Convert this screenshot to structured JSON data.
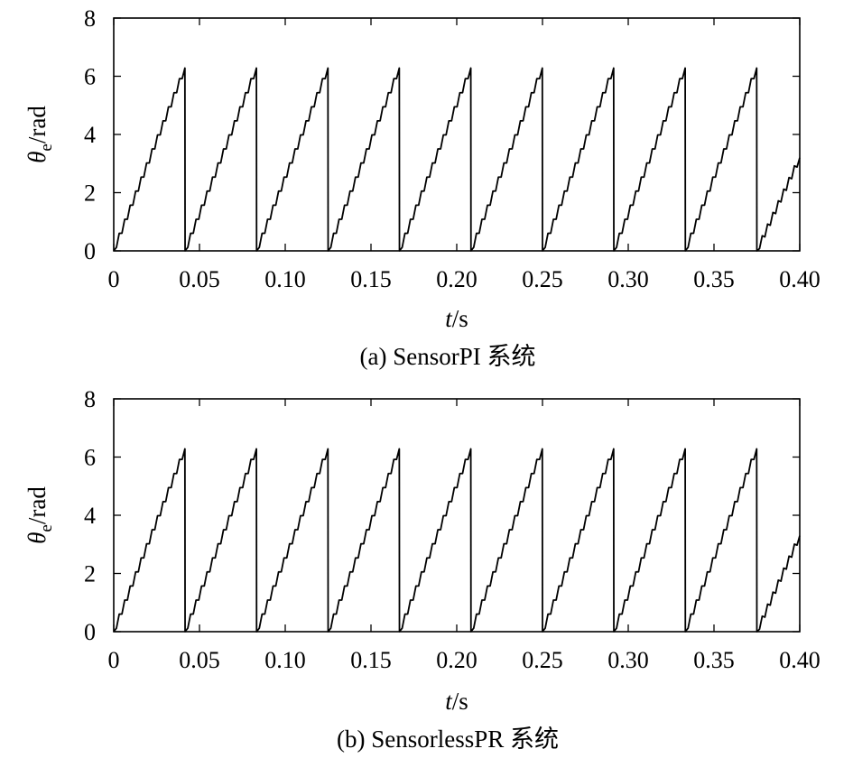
{
  "chart_data": [
    {
      "type": "line",
      "caption": "(a) SensorPI 系统",
      "ylabel": "θe/rad",
      "ylabel_parts": {
        "symbol": "θ",
        "subscript": "e",
        "unit": "/rad"
      },
      "xlabel": "t/s",
      "xlabel_parts": {
        "symbol": "t",
        "unit": "/s"
      },
      "xlim": [
        0,
        0.4
      ],
      "ylim": [
        0,
        8
      ],
      "xticks": [
        0,
        0.05,
        0.1,
        0.15,
        0.2,
        0.25,
        0.3,
        0.35,
        0.4
      ],
      "xtick_labels": [
        "0",
        "0.05",
        "0.10",
        "0.15",
        "0.20",
        "0.25",
        "0.30",
        "0.35",
        "0.40"
      ],
      "yticks": [
        0,
        2,
        4,
        6,
        8
      ],
      "ytick_labels": [
        "0",
        "2",
        "4",
        "6",
        "8"
      ],
      "grid": false,
      "legend": "none",
      "series": [
        {
          "style": "sawtooth",
          "color": "#000000",
          "period": 0.042,
          "peak": 6.28,
          "ripple": 0.12,
          "x": [
            0,
            0.0415,
            0.0416,
            0.0832,
            0.0833,
            0.1249,
            0.125,
            0.1665,
            0.1666,
            0.2082,
            0.2083,
            0.2499,
            0.25,
            0.2915,
            0.2916,
            0.3332,
            0.3333,
            0.3749,
            0.375,
            0.4
          ],
          "values": [
            0,
            6.28,
            0,
            6.28,
            0,
            6.28,
            0,
            6.28,
            0,
            6.28,
            0,
            6.28,
            0,
            6.28,
            0,
            6.28,
            0,
            6.28,
            0,
            3.2
          ]
        }
      ]
    },
    {
      "type": "line",
      "caption": "(b) SensorlessPR 系统",
      "ylabel": "θe/rad",
      "ylabel_parts": {
        "symbol": "θ",
        "subscript": "e",
        "unit": "/rad"
      },
      "xlabel": "t/s",
      "xlabel_parts": {
        "symbol": "t",
        "unit": "/s"
      },
      "xlim": [
        0,
        0.4
      ],
      "ylim": [
        0,
        8
      ],
      "xticks": [
        0,
        0.05,
        0.1,
        0.15,
        0.2,
        0.25,
        0.3,
        0.35,
        0.4
      ],
      "xtick_labels": [
        "0",
        "0.05",
        "0.10",
        "0.15",
        "0.20",
        "0.25",
        "0.30",
        "0.35",
        "0.40"
      ],
      "yticks": [
        0,
        2,
        4,
        6,
        8
      ],
      "ytick_labels": [
        "0",
        "2",
        "4",
        "6",
        "8"
      ],
      "grid": false,
      "legend": "none",
      "series": [
        {
          "style": "sawtooth",
          "color": "#000000",
          "period": 0.042,
          "peak": 6.28,
          "ripple": 0.12,
          "x": [
            0,
            0.0415,
            0.0416,
            0.0832,
            0.0833,
            0.1249,
            0.125,
            0.1665,
            0.1666,
            0.2082,
            0.2083,
            0.2499,
            0.25,
            0.2915,
            0.2916,
            0.3332,
            0.3333,
            0.3749,
            0.375,
            0.4
          ],
          "values": [
            0,
            6.28,
            0,
            6.28,
            0,
            6.28,
            0,
            6.28,
            0,
            6.28,
            0,
            6.28,
            0,
            6.28,
            0,
            6.28,
            0,
            6.28,
            0,
            3.3
          ]
        }
      ]
    }
  ]
}
